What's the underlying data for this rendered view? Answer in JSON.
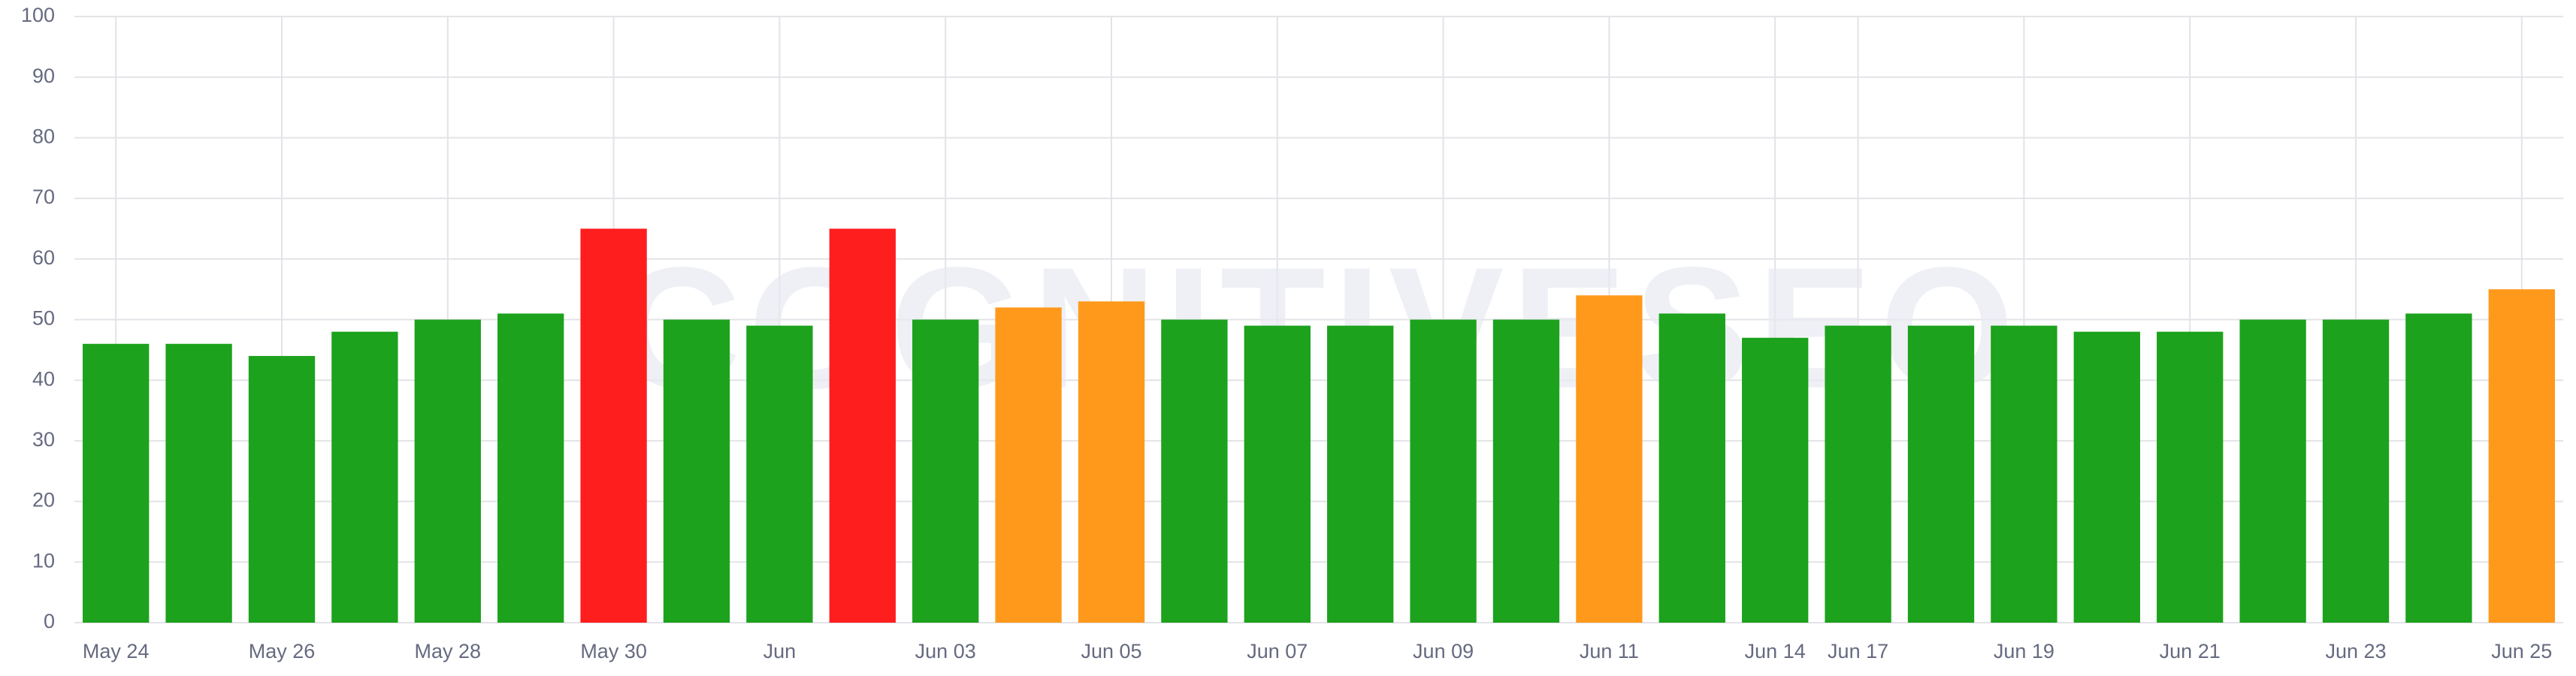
{
  "chart_data": {
    "type": "bar",
    "watermark": "COGNITIVESEO",
    "categories": [
      "May 24",
      null,
      "May 26",
      null,
      "May 28",
      null,
      "May 30",
      null,
      "Jun",
      null,
      "Jun 03",
      null,
      "Jun 05",
      null,
      "Jun 07",
      null,
      "Jun 09",
      null,
      "Jun 11",
      null,
      "Jun 14",
      "Jun 17",
      null,
      "Jun 19",
      null,
      "Jun 21",
      null,
      "Jun 23",
      null,
      "Jun 25"
    ],
    "values": [
      46,
      46,
      44,
      48,
      50,
      51,
      65,
      50,
      49,
      65,
      50,
      52,
      53,
      50,
      49,
      49,
      50,
      50,
      54,
      51,
      47,
      49,
      49,
      49,
      48,
      48,
      50,
      50,
      51,
      55
    ],
    "colors": [
      "#1ca21c",
      "#1ca21c",
      "#1ca21c",
      "#1ca21c",
      "#1ca21c",
      "#1ca21c",
      "#ff1e1e",
      "#1ca21c",
      "#1ca21c",
      "#ff1e1e",
      "#1ca21c",
      "#ff991c",
      "#ff991c",
      "#1ca21c",
      "#1ca21c",
      "#1ca21c",
      "#1ca21c",
      "#1ca21c",
      "#ff991c",
      "#1ca21c",
      "#1ca21c",
      "#1ca21c",
      "#1ca21c",
      "#1ca21c",
      "#1ca21c",
      "#1ca21c",
      "#1ca21c",
      "#1ca21c",
      "#1ca21c",
      "#ff991c"
    ],
    "ylim": [
      0,
      100
    ],
    "yticks": [
      0,
      10,
      20,
      30,
      40,
      50,
      60,
      70,
      80,
      90,
      100
    ],
    "grid": true
  }
}
